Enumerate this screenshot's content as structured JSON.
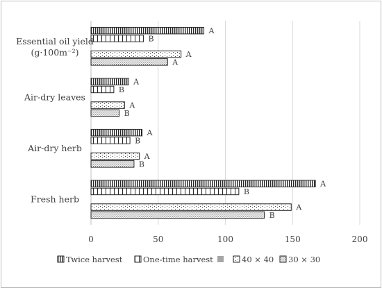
{
  "chart_data": {
    "type": "bar",
    "orientation": "horizontal",
    "title": "",
    "xlabel": "",
    "ylabel": "",
    "xlim": [
      0,
      200
    ],
    "x_ticks": [
      0,
      50,
      100,
      150,
      200
    ],
    "grid": "vertical",
    "legend_position": "bottom",
    "categories": [
      {
        "label": "Essential oil yield",
        "label2": "(g·100m⁻²)"
      },
      {
        "label": "Air-dry leaves"
      },
      {
        "label": "Air-dry herb"
      },
      {
        "label": "Fresh herb"
      }
    ],
    "series": [
      {
        "name": "Twice harvest",
        "pattern": "vertical-dense",
        "values": [
          84,
          28,
          38,
          167
        ],
        "letters": [
          "A",
          "A",
          "A",
          "A"
        ]
      },
      {
        "name": "One-time harvest",
        "pattern": "vertical-sparse",
        "values": [
          39,
          17,
          29,
          110
        ],
        "letters": [
          "B",
          "B",
          "B",
          "B"
        ]
      },
      {
        "name": "",
        "pattern": "solid-gray",
        "values": [
          null,
          null,
          null,
          null
        ],
        "letters": [
          "",
          "",
          "",
          ""
        ]
      },
      {
        "name": "40 × 40",
        "pattern": "dots-sparse",
        "values": [
          67,
          25,
          36,
          149
        ],
        "letters": [
          "A",
          "A",
          "A",
          "A"
        ]
      },
      {
        "name": "30 × 30",
        "pattern": "dots-dense",
        "values": [
          57,
          21,
          32,
          129
        ],
        "letters": [
          "A",
          "B",
          "B",
          "B"
        ]
      }
    ],
    "colors": {
      "stroke": "#262626",
      "grid": "#d9d9d9",
      "text": "#404040",
      "gray": "#a6a6a6"
    }
  }
}
